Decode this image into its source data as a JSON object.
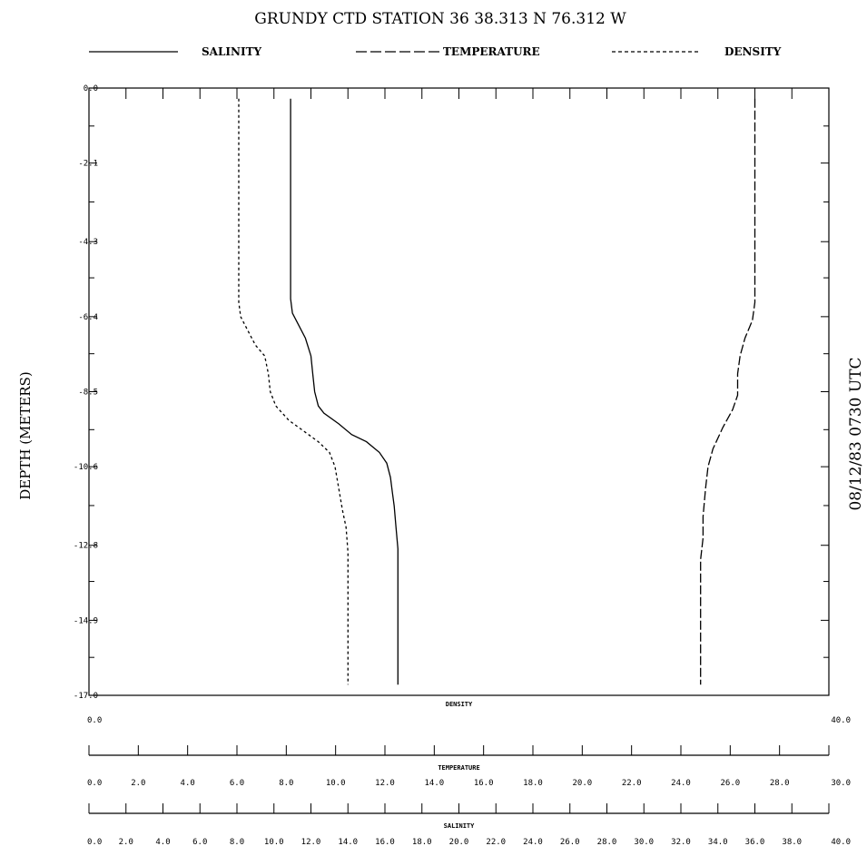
{
  "chart_data": {
    "type": "line",
    "title": "GRUNDY CTD STATION  36    38.313 N    76.312 W",
    "ylabel": "DEPTH (METERS)",
    "side_label": "08/12/83 0730 UTC",
    "y_axis": {
      "range": [
        -17.0,
        0.0
      ],
      "tick_labels": [
        "0.0",
        "-2.1",
        "-4.3",
        "-6.4",
        "-8.5",
        "-10.6",
        "-12.8",
        "-14.9",
        "-17.0"
      ]
    },
    "x_axes": [
      {
        "name": "DENSITY",
        "range": [
          0,
          40
        ],
        "tick_labels": [
          "0.0",
          "40.0"
        ]
      },
      {
        "name": "TEMPERATURE",
        "range": [
          0,
          30
        ],
        "tick_labels": [
          "0.0",
          "2.0",
          "4.0",
          "6.0",
          "8.0",
          "10.0",
          "12.0",
          "14.0",
          "16.0",
          "18.0",
          "20.0",
          "22.0",
          "24.0",
          "26.0",
          "28.0",
          "30.0"
        ]
      },
      {
        "name": "SALINITY",
        "range": [
          0,
          40
        ],
        "tick_labels": [
          "0.0",
          "2.0",
          "4.0",
          "6.0",
          "8.0",
          "10.0",
          "12.0",
          "14.0",
          "16.0",
          "18.0",
          "20.0",
          "22.0",
          "24.0",
          "26.0",
          "28.0",
          "30.0",
          "32.0",
          "34.0",
          "36.0",
          "38.0",
          "40.0"
        ]
      }
    ],
    "legend": [
      {
        "name": "SALINITY",
        "style": "solid"
      },
      {
        "name": "TEMPERATURE",
        "style": "dashed"
      },
      {
        "name": "DENSITY",
        "style": "dotted"
      }
    ],
    "series": [
      {
        "name": "SALINITY",
        "axis": "SALINITY",
        "style": "solid",
        "points": [
          [
            10.9,
            -0.3
          ],
          [
            10.9,
            -2.0
          ],
          [
            10.9,
            -4.0
          ],
          [
            10.9,
            -5.9
          ],
          [
            11.0,
            -6.3
          ],
          [
            11.3,
            -6.6
          ],
          [
            11.7,
            -7.0
          ],
          [
            12.0,
            -7.5
          ],
          [
            12.1,
            -8.0
          ],
          [
            12.2,
            -8.5
          ],
          [
            12.4,
            -8.9
          ],
          [
            12.7,
            -9.1
          ],
          [
            13.5,
            -9.4
          ],
          [
            14.2,
            -9.7
          ],
          [
            15.0,
            -9.9
          ],
          [
            15.7,
            -10.2
          ],
          [
            16.1,
            -10.5
          ],
          [
            16.3,
            -10.9
          ],
          [
            16.4,
            -11.3
          ],
          [
            16.5,
            -11.7
          ],
          [
            16.6,
            -12.3
          ],
          [
            16.7,
            -12.9
          ],
          [
            16.7,
            -13.5
          ],
          [
            16.7,
            -15.0
          ],
          [
            16.7,
            -16.7
          ]
        ]
      },
      {
        "name": "TEMPERATURE",
        "axis": "TEMPERATURE",
        "style": "dashed",
        "points": [
          [
            27.0,
            -0.3
          ],
          [
            27.0,
            -2.0
          ],
          [
            27.0,
            -4.0
          ],
          [
            27.0,
            -6.0
          ],
          [
            26.9,
            -6.5
          ],
          [
            26.6,
            -7.0
          ],
          [
            26.4,
            -7.5
          ],
          [
            26.3,
            -8.0
          ],
          [
            26.3,
            -8.6
          ],
          [
            26.1,
            -9.0
          ],
          [
            25.7,
            -9.5
          ],
          [
            25.3,
            -10.1
          ],
          [
            25.1,
            -10.6
          ],
          [
            25.0,
            -11.2
          ],
          [
            24.9,
            -12.0
          ],
          [
            24.9,
            -12.6
          ],
          [
            24.8,
            -13.2
          ],
          [
            24.8,
            -15.0
          ],
          [
            24.8,
            -16.7
          ]
        ]
      },
      {
        "name": "DENSITY",
        "axis": "DENSITY",
        "style": "dotted",
        "points": [
          [
            8.1,
            -0.3
          ],
          [
            8.1,
            -2.0
          ],
          [
            8.1,
            -4.0
          ],
          [
            8.1,
            -6.0
          ],
          [
            8.2,
            -6.4
          ],
          [
            8.6,
            -6.8
          ],
          [
            9.0,
            -7.2
          ],
          [
            9.5,
            -7.5
          ],
          [
            9.7,
            -8.0
          ],
          [
            9.8,
            -8.5
          ],
          [
            10.1,
            -8.9
          ],
          [
            10.8,
            -9.3
          ],
          [
            11.6,
            -9.6
          ],
          [
            12.4,
            -9.9
          ],
          [
            13.0,
            -10.2
          ],
          [
            13.3,
            -10.6
          ],
          [
            13.5,
            -11.2
          ],
          [
            13.7,
            -11.8
          ],
          [
            13.9,
            -12.3
          ],
          [
            14.0,
            -13.0
          ],
          [
            14.0,
            -15.0
          ],
          [
            14.0,
            -16.7
          ]
        ]
      }
    ]
  }
}
